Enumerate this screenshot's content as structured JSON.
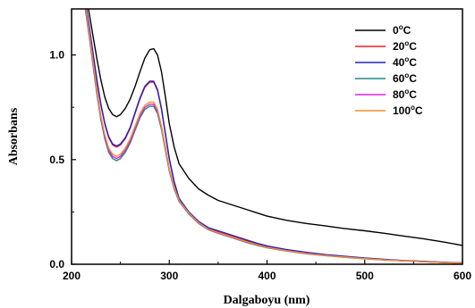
{
  "chart_data": {
    "type": "line",
    "xlabel": "Dalgaboyu (nm)",
    "ylabel": "Absorbans",
    "xlim": [
      200,
      600
    ],
    "ylim": [
      0,
      1.22
    ],
    "x_ticks": [
      "200",
      "300",
      "400",
      "500",
      "600"
    ],
    "y_ticks": [
      "0.0",
      "0.5",
      "1.0"
    ],
    "legend_position": "top-right",
    "grid": false,
    "series": [
      {
        "name_value": "0",
        "name_unit": "C",
        "color": "#000000",
        "x": [
          214,
          218,
          222,
          226,
          230,
          234,
          238,
          242,
          246,
          250,
          255,
          260,
          265,
          270,
          275,
          280,
          284,
          288,
          292,
          296,
          300,
          305,
          310,
          320,
          330,
          340,
          350,
          360,
          370,
          380,
          390,
          400,
          420,
          440,
          460,
          480,
          500,
          520,
          540,
          560,
          580,
          600
        ],
        "y": [
          1.3,
          1.2,
          1.09,
          0.98,
          0.88,
          0.8,
          0.745,
          0.715,
          0.705,
          0.715,
          0.745,
          0.79,
          0.85,
          0.92,
          0.985,
          1.025,
          1.03,
          1.0,
          0.92,
          0.8,
          0.67,
          0.56,
          0.48,
          0.41,
          0.36,
          0.33,
          0.305,
          0.29,
          0.275,
          0.26,
          0.245,
          0.23,
          0.21,
          0.195,
          0.183,
          0.17,
          0.16,
          0.148,
          0.135,
          0.122,
          0.107,
          0.09
        ]
      },
      {
        "name_value": "20",
        "name_unit": "C",
        "color": "#e8202a",
        "x": [
          214,
          218,
          222,
          226,
          230,
          234,
          238,
          242,
          246,
          250,
          255,
          260,
          265,
          270,
          275,
          280,
          284,
          288,
          292,
          296,
          300,
          305,
          310,
          320,
          330,
          340,
          350,
          360,
          370,
          380,
          390,
          400,
          420,
          440,
          460,
          480,
          500,
          520,
          540,
          560,
          580,
          600
        ],
        "y": [
          1.25,
          1.13,
          1.0,
          0.87,
          0.76,
          0.67,
          0.605,
          0.57,
          0.56,
          0.57,
          0.6,
          0.65,
          0.72,
          0.79,
          0.845,
          0.87,
          0.87,
          0.83,
          0.74,
          0.62,
          0.5,
          0.39,
          0.31,
          0.245,
          0.2,
          0.17,
          0.155,
          0.14,
          0.125,
          0.11,
          0.095,
          0.083,
          0.066,
          0.053,
          0.043,
          0.035,
          0.028,
          0.022,
          0.017,
          0.013,
          0.009,
          0.006
        ]
      },
      {
        "name_value": "40",
        "name_unit": "C",
        "color": "#2323c4",
        "x": [
          214,
          218,
          222,
          226,
          230,
          234,
          238,
          242,
          246,
          250,
          255,
          260,
          265,
          270,
          275,
          280,
          284,
          288,
          292,
          296,
          300,
          305,
          310,
          320,
          330,
          340,
          350,
          360,
          370,
          380,
          390,
          400,
          420,
          440,
          460,
          480,
          500,
          520,
          540,
          560,
          580,
          600
        ],
        "y": [
          1.26,
          1.14,
          1.01,
          0.88,
          0.765,
          0.675,
          0.61,
          0.575,
          0.565,
          0.575,
          0.605,
          0.655,
          0.725,
          0.795,
          0.85,
          0.875,
          0.875,
          0.835,
          0.745,
          0.625,
          0.505,
          0.395,
          0.315,
          0.25,
          0.205,
          0.175,
          0.16,
          0.145,
          0.13,
          0.115,
          0.1,
          0.088,
          0.07,
          0.057,
          0.046,
          0.038,
          0.03,
          0.024,
          0.018,
          0.014,
          0.01,
          0.007
        ]
      },
      {
        "name_value": "60",
        "name_unit": "C",
        "color": "#1e8a8a",
        "x": [
          214,
          218,
          222,
          226,
          230,
          234,
          238,
          242,
          246,
          250,
          255,
          260,
          265,
          270,
          275,
          280,
          284,
          288,
          292,
          296,
          300,
          305,
          310,
          320,
          330,
          340,
          350,
          360,
          370,
          380,
          390,
          400,
          420,
          440,
          460,
          480,
          500,
          520,
          540,
          560,
          580,
          600
        ],
        "y": [
          1.22,
          1.09,
          0.95,
          0.81,
          0.69,
          0.6,
          0.535,
          0.505,
          0.495,
          0.505,
          0.535,
          0.58,
          0.64,
          0.7,
          0.74,
          0.755,
          0.755,
          0.72,
          0.645,
          0.545,
          0.445,
          0.36,
          0.3,
          0.24,
          0.195,
          0.165,
          0.148,
          0.133,
          0.118,
          0.103,
          0.09,
          0.079,
          0.063,
          0.05,
          0.041,
          0.033,
          0.026,
          0.02,
          0.016,
          0.012,
          0.008,
          0.005
        ]
      },
      {
        "name_value": "80",
        "name_unit": "C",
        "color": "#e020e0",
        "x": [
          214,
          218,
          222,
          226,
          230,
          234,
          238,
          242,
          246,
          250,
          255,
          260,
          265,
          270,
          275,
          280,
          284,
          288,
          292,
          296,
          300,
          305,
          310,
          320,
          330,
          340,
          350,
          360,
          370,
          380,
          390,
          400,
          420,
          440,
          460,
          480,
          500,
          520,
          540,
          560,
          580,
          600
        ],
        "y": [
          1.23,
          1.1,
          0.96,
          0.82,
          0.7,
          0.61,
          0.545,
          0.515,
          0.505,
          0.515,
          0.545,
          0.59,
          0.65,
          0.71,
          0.75,
          0.765,
          0.765,
          0.73,
          0.655,
          0.555,
          0.45,
          0.365,
          0.303,
          0.243,
          0.197,
          0.167,
          0.15,
          0.135,
          0.12,
          0.105,
          0.092,
          0.08,
          0.064,
          0.051,
          0.042,
          0.034,
          0.027,
          0.021,
          0.016,
          0.012,
          0.008,
          0.005
        ]
      },
      {
        "name_value": "100",
        "name_unit": "C",
        "color": "#f0902a",
        "x": [
          214,
          218,
          222,
          226,
          230,
          234,
          238,
          242,
          246,
          250,
          255,
          260,
          265,
          270,
          275,
          280,
          284,
          288,
          292,
          296,
          300,
          305,
          310,
          320,
          330,
          340,
          350,
          360,
          370,
          380,
          390,
          400,
          420,
          440,
          460,
          480,
          500,
          520,
          540,
          560,
          580,
          600
        ],
        "y": [
          1.24,
          1.11,
          0.97,
          0.83,
          0.71,
          0.62,
          0.555,
          0.525,
          0.515,
          0.525,
          0.555,
          0.6,
          0.66,
          0.72,
          0.76,
          0.775,
          0.775,
          0.74,
          0.66,
          0.56,
          0.455,
          0.368,
          0.305,
          0.245,
          0.199,
          0.168,
          0.151,
          0.136,
          0.121,
          0.106,
          0.093,
          0.081,
          0.065,
          0.052,
          0.042,
          0.034,
          0.027,
          0.021,
          0.016,
          0.012,
          0.008,
          0.005
        ]
      }
    ]
  }
}
